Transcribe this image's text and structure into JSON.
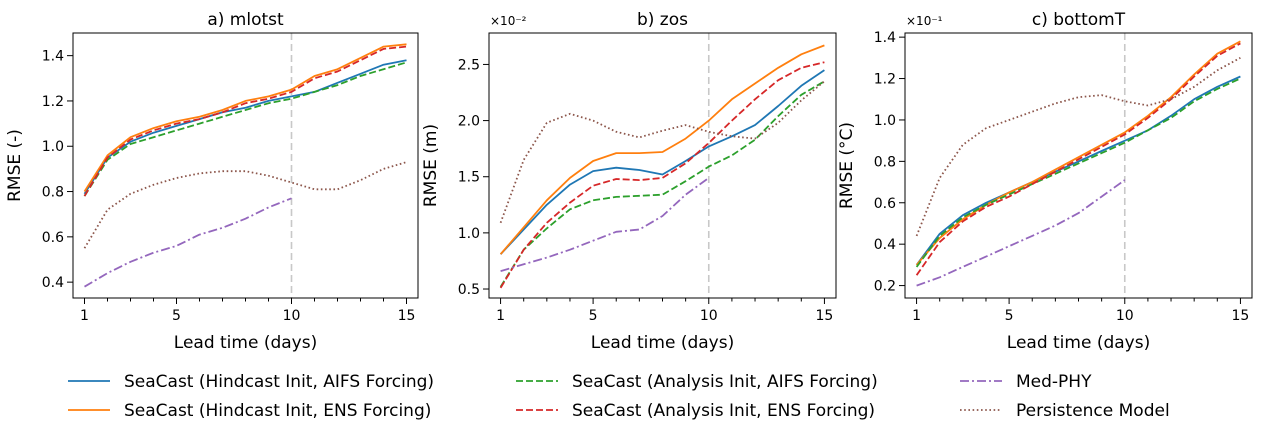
{
  "legend": {
    "placement": "bottom",
    "entries": [
      {
        "key": "hind_aifs",
        "label": "SeaCast (Hindcast Init, AIFS Forcing)",
        "color": "#1f77b4",
        "dash": "solid"
      },
      {
        "key": "hind_ens",
        "label": "SeaCast (Hindcast Init, ENS Forcing)",
        "color": "#ff7f0e",
        "dash": "solid"
      },
      {
        "key": "ana_aifs",
        "label": "SeaCast (Analysis Init, AIFS Forcing)",
        "color": "#2ca02c",
        "dash": "dashed"
      },
      {
        "key": "ana_ens",
        "label": "SeaCast (Analysis Init, ENS Forcing)",
        "color": "#d62728",
        "dash": "dashed"
      },
      {
        "key": "medphy",
        "label": "Med-PHY",
        "color": "#9467bd",
        "dash": "dashdot"
      },
      {
        "key": "persist",
        "label": "Persistence Model",
        "color": "#8c564b",
        "dash": "dotted"
      }
    ]
  },
  "chart_data": [
    {
      "type": "line",
      "title": "a) mlotst",
      "xlabel": "Lead time (days)",
      "ylabel": "RMSE (-)",
      "scale_label": "",
      "xlim": [
        0.5,
        15.5
      ],
      "ylim": [
        0.33,
        1.5
      ],
      "xticks": [
        1,
        5,
        10,
        15
      ],
      "yticks": [
        0.4,
        0.6,
        0.8,
        1.0,
        1.2,
        1.4
      ],
      "ytick_labels": [
        "0.4",
        "0.6",
        "0.8",
        "1.0",
        "1.2",
        "1.4"
      ],
      "vline": 10,
      "series": [
        {
          "key": "hind_aifs",
          "x": [
            1,
            2,
            3,
            4,
            5,
            6,
            7,
            8,
            9,
            10,
            11,
            12,
            13,
            14,
            15
          ],
          "values": [
            0.79,
            0.95,
            1.02,
            1.06,
            1.09,
            1.12,
            1.15,
            1.17,
            1.2,
            1.22,
            1.24,
            1.28,
            1.32,
            1.36,
            1.38
          ]
        },
        {
          "key": "hind_ens",
          "x": [
            1,
            2,
            3,
            4,
            5,
            6,
            7,
            8,
            9,
            10,
            11,
            12,
            13,
            14,
            15
          ],
          "values": [
            0.8,
            0.96,
            1.04,
            1.08,
            1.11,
            1.13,
            1.16,
            1.2,
            1.22,
            1.25,
            1.31,
            1.34,
            1.39,
            1.44,
            1.45
          ]
        },
        {
          "key": "ana_aifs",
          "x": [
            1,
            2,
            3,
            4,
            5,
            6,
            7,
            8,
            9,
            10,
            11,
            12,
            13,
            14,
            15
          ],
          "values": [
            0.78,
            0.94,
            1.01,
            1.04,
            1.07,
            1.1,
            1.13,
            1.16,
            1.19,
            1.21,
            1.24,
            1.27,
            1.31,
            1.34,
            1.37
          ]
        },
        {
          "key": "ana_ens",
          "x": [
            1,
            2,
            3,
            4,
            5,
            6,
            7,
            8,
            9,
            10,
            11,
            12,
            13,
            14,
            15
          ],
          "values": [
            0.78,
            0.95,
            1.03,
            1.07,
            1.1,
            1.12,
            1.15,
            1.19,
            1.21,
            1.24,
            1.3,
            1.33,
            1.38,
            1.43,
            1.44
          ]
        },
        {
          "key": "medphy",
          "x": [
            1,
            2,
            3,
            4,
            5,
            6,
            7,
            8,
            9,
            10
          ],
          "values": [
            0.38,
            0.44,
            0.49,
            0.53,
            0.56,
            0.61,
            0.64,
            0.68,
            0.73,
            0.77
          ]
        },
        {
          "key": "persist",
          "x": [
            1,
            2,
            3,
            4,
            5,
            6,
            7,
            8,
            9,
            10,
            11,
            12,
            13,
            14,
            15
          ],
          "values": [
            0.55,
            0.72,
            0.79,
            0.83,
            0.86,
            0.88,
            0.89,
            0.89,
            0.87,
            0.84,
            0.81,
            0.81,
            0.85,
            0.9,
            0.93
          ]
        }
      ]
    },
    {
      "type": "line",
      "title": "b) zos",
      "xlabel": "Lead time (days)",
      "ylabel": "RMSE (m)",
      "scale_label": "×10⁻²",
      "xlim": [
        0.5,
        15.5
      ],
      "ylim": [
        0.42,
        2.78
      ],
      "xticks": [
        1,
        5,
        10,
        15
      ],
      "yticks": [
        0.5,
        1.0,
        1.5,
        2.0,
        2.5
      ],
      "ytick_labels": [
        "0.5",
        "1.0",
        "1.5",
        "2.0",
        "2.5"
      ],
      "vline": 10,
      "series": [
        {
          "key": "hind_aifs",
          "x": [
            1,
            2,
            3,
            4,
            5,
            6,
            7,
            8,
            9,
            10,
            11,
            12,
            13,
            14,
            15
          ],
          "values": [
            0.81,
            1.03,
            1.25,
            1.43,
            1.55,
            1.58,
            1.56,
            1.52,
            1.64,
            1.77,
            1.86,
            1.96,
            2.13,
            2.31,
            2.45
          ]
        },
        {
          "key": "hind_ens",
          "x": [
            1,
            2,
            3,
            4,
            5,
            6,
            7,
            8,
            9,
            10,
            11,
            12,
            13,
            14,
            15
          ],
          "values": [
            0.81,
            1.05,
            1.29,
            1.49,
            1.64,
            1.71,
            1.71,
            1.72,
            1.84,
            2.0,
            2.19,
            2.33,
            2.47,
            2.59,
            2.67
          ]
        },
        {
          "key": "ana_aifs",
          "x": [
            1,
            2,
            3,
            4,
            5,
            6,
            7,
            8,
            9,
            10,
            11,
            12,
            13,
            14,
            15
          ],
          "values": [
            0.52,
            0.85,
            1.04,
            1.21,
            1.29,
            1.32,
            1.33,
            1.34,
            1.46,
            1.59,
            1.69,
            1.83,
            2.04,
            2.23,
            2.35
          ]
        },
        {
          "key": "ana_ens",
          "x": [
            1,
            2,
            3,
            4,
            5,
            6,
            7,
            8,
            9,
            10,
            11,
            12,
            13,
            14,
            15
          ],
          "values": [
            0.51,
            0.85,
            1.09,
            1.27,
            1.42,
            1.48,
            1.47,
            1.49,
            1.62,
            1.8,
            2.0,
            2.19,
            2.36,
            2.47,
            2.52
          ]
        },
        {
          "key": "medphy",
          "x": [
            1,
            2,
            3,
            4,
            5,
            6,
            7,
            8,
            9,
            10
          ],
          "values": [
            0.66,
            0.72,
            0.78,
            0.85,
            0.93,
            1.01,
            1.03,
            1.15,
            1.34,
            1.49
          ]
        },
        {
          "key": "persist",
          "x": [
            1,
            2,
            3,
            4,
            5,
            6,
            7,
            8,
            9,
            10,
            11,
            12,
            13,
            14,
            15
          ],
          "values": [
            1.09,
            1.65,
            1.98,
            2.06,
            2.0,
            1.9,
            1.85,
            1.91,
            1.96,
            1.9,
            1.86,
            1.84,
            1.98,
            2.18,
            2.35
          ]
        }
      ]
    },
    {
      "type": "line",
      "title": "c) bottomT",
      "xlabel": "Lead time (days)",
      "ylabel": "RMSE (°C)",
      "scale_label": "×10⁻¹",
      "xlim": [
        0.5,
        15.5
      ],
      "ylim": [
        0.14,
        1.42
      ],
      "xticks": [
        1,
        5,
        10,
        15
      ],
      "yticks": [
        0.2,
        0.4,
        0.6,
        0.8,
        1.0,
        1.2,
        1.4
      ],
      "ytick_labels": [
        "0.2",
        "0.4",
        "0.6",
        "0.8",
        "1.0",
        "1.2",
        "1.4"
      ],
      "vline": 10,
      "series": [
        {
          "key": "hind_aifs",
          "x": [
            1,
            2,
            3,
            4,
            5,
            6,
            7,
            8,
            9,
            10,
            11,
            12,
            13,
            14,
            15
          ],
          "values": [
            0.3,
            0.45,
            0.54,
            0.6,
            0.65,
            0.7,
            0.75,
            0.8,
            0.85,
            0.9,
            0.95,
            1.02,
            1.1,
            1.16,
            1.21
          ]
        },
        {
          "key": "hind_ens",
          "x": [
            1,
            2,
            3,
            4,
            5,
            6,
            7,
            8,
            9,
            10,
            11,
            12,
            13,
            14,
            15
          ],
          "values": [
            0.3,
            0.43,
            0.52,
            0.59,
            0.65,
            0.7,
            0.76,
            0.82,
            0.88,
            0.94,
            1.02,
            1.11,
            1.22,
            1.32,
            1.38
          ]
        },
        {
          "key": "ana_aifs",
          "x": [
            1,
            2,
            3,
            4,
            5,
            6,
            7,
            8,
            9,
            10,
            11,
            12,
            13,
            14,
            15
          ],
          "values": [
            0.29,
            0.44,
            0.53,
            0.59,
            0.64,
            0.69,
            0.74,
            0.79,
            0.84,
            0.89,
            0.95,
            1.01,
            1.09,
            1.15,
            1.2
          ]
        },
        {
          "key": "ana_ens",
          "x": [
            1,
            2,
            3,
            4,
            5,
            6,
            7,
            8,
            9,
            10,
            11,
            12,
            13,
            14,
            15
          ],
          "values": [
            0.25,
            0.41,
            0.51,
            0.58,
            0.63,
            0.69,
            0.75,
            0.81,
            0.87,
            0.93,
            1.01,
            1.1,
            1.21,
            1.31,
            1.37
          ]
        },
        {
          "key": "medphy",
          "x": [
            1,
            2,
            3,
            4,
            5,
            6,
            7,
            8,
            9,
            10
          ],
          "values": [
            0.2,
            0.24,
            0.29,
            0.34,
            0.39,
            0.44,
            0.49,
            0.55,
            0.63,
            0.71
          ]
        },
        {
          "key": "persist",
          "x": [
            1,
            2,
            3,
            4,
            5,
            6,
            7,
            8,
            9,
            10,
            11,
            12,
            13,
            14,
            15
          ],
          "values": [
            0.44,
            0.72,
            0.88,
            0.96,
            1.0,
            1.04,
            1.08,
            1.11,
            1.12,
            1.09,
            1.07,
            1.1,
            1.16,
            1.24,
            1.3
          ]
        }
      ]
    }
  ]
}
